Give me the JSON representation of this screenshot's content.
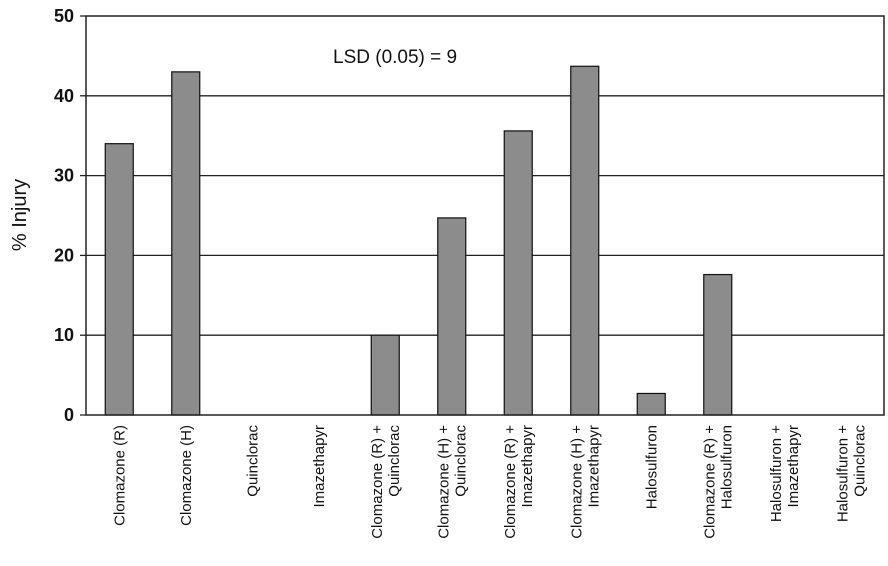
{
  "chart_data": {
    "type": "bar",
    "title": "",
    "xlabel": "",
    "ylabel": "% Injury",
    "ylim": [
      0,
      50
    ],
    "yticks": [
      0,
      10,
      20,
      30,
      40,
      50
    ],
    "grid": "horizontal",
    "annotation": "LSD (0.05) = 9",
    "bar_color": "#8c8c8c",
    "categories": [
      [
        "Clomazone (R)"
      ],
      [
        "Clomazone (H)"
      ],
      [
        "Quinclorac"
      ],
      [
        "Imazethapyr"
      ],
      [
        "Clomazone (R) +",
        "Quinclorac"
      ],
      [
        "Clomazone (H) +",
        "Quinclorac"
      ],
      [
        "Clomazone (R) +",
        "Imazethapyr"
      ],
      [
        "Clomazone (H) +",
        "Imazethapyr"
      ],
      [
        "Halosulfuron"
      ],
      [
        "Clomazone (R) +",
        "Halosulfuron"
      ],
      [
        "Halosulfuron +",
        "Imazethapyr"
      ],
      [
        "Halosulfuron +",
        "Quinclorac"
      ]
    ],
    "values": [
      34,
      43,
      0,
      0,
      10,
      24.7,
      35.6,
      43.7,
      2.7,
      17.6,
      0,
      0
    ]
  }
}
